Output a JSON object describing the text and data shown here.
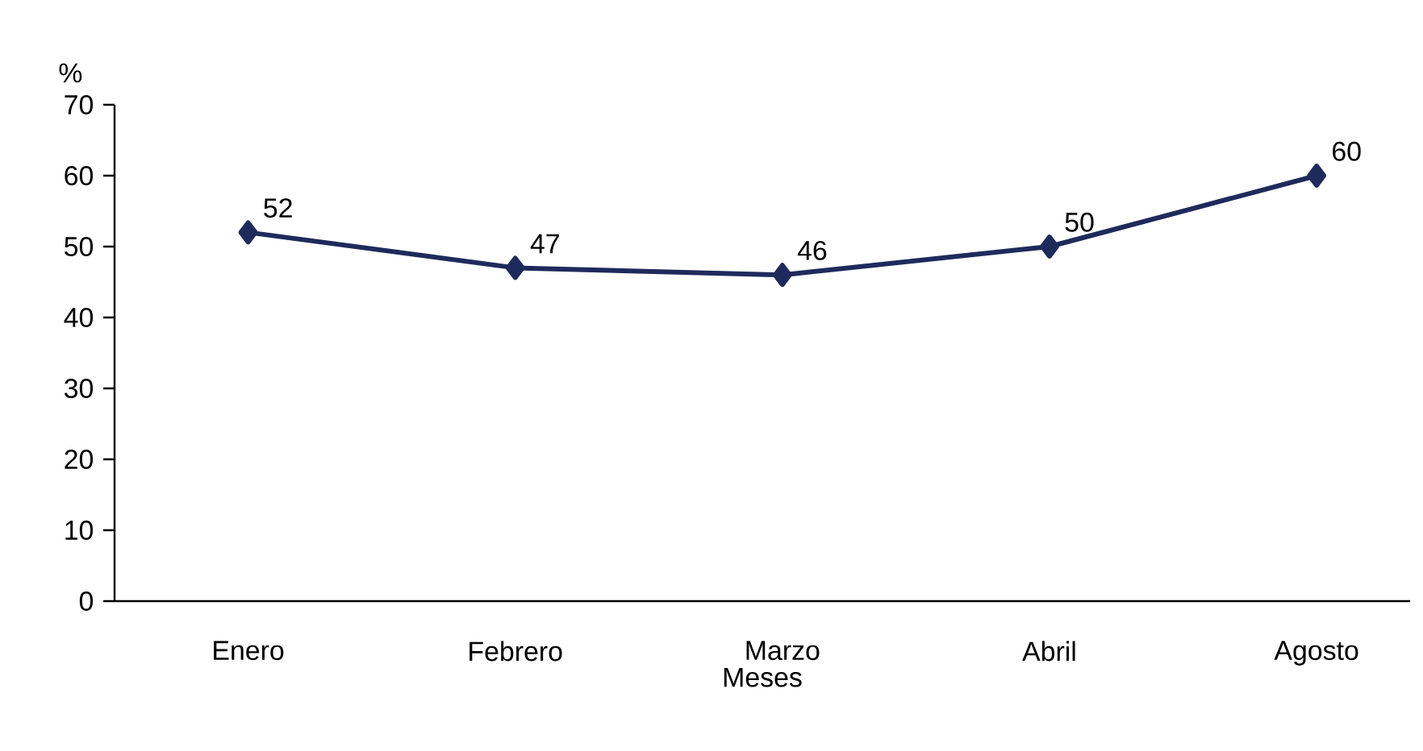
{
  "chart_data": {
    "type": "line",
    "ylabel": "%",
    "xlabel": "Meses",
    "categories": [
      "Enero",
      "Febrero",
      "Marzo",
      "Abril",
      "Agosto"
    ],
    "series": [
      {
        "color": "#1f2a5c",
        "values": [
          52,
          47,
          46,
          50,
          60
        ]
      }
    ],
    "ylim": [
      0,
      70
    ],
    "yticks": [
      0,
      10,
      20,
      30,
      40,
      50,
      60,
      70
    ],
    "marker": "diamond",
    "line_style": "solid",
    "data_labels": true,
    "grid": false
  }
}
